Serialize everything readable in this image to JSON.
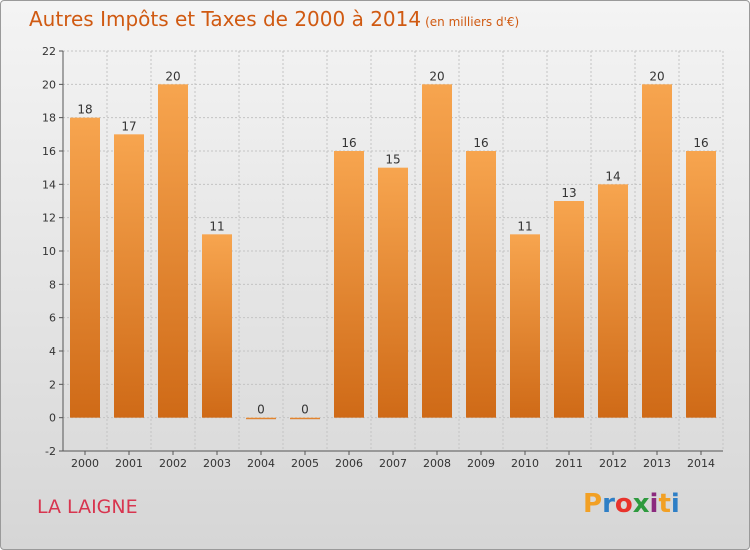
{
  "header": {
    "title": "Autres Impôts et Taxes de 2000 à 2014",
    "unit": "(en milliers d'€)"
  },
  "footer": {
    "place": "LA LAIGNE",
    "logo_letters": [
      "P",
      "r",
      "o",
      "x",
      "i",
      "t",
      "i"
    ],
    "logo_colors": [
      "#f2a024",
      "#2e7fc6",
      "#e8332c",
      "#2e9a3e",
      "#8b2a7e",
      "#f2a024",
      "#2e7fc6"
    ]
  },
  "colors": {
    "bar_light": "#f7a54f",
    "bar_dark": "#cf6a17",
    "title": "#d05a12",
    "place": "#d8354f"
  },
  "chart_data": {
    "type": "bar",
    "title": "Autres Impôts et Taxes de 2000 à 2014",
    "subtitle": "(en milliers d'€)",
    "categories": [
      "2000",
      "2001",
      "2002",
      "2003",
      "2004",
      "2005",
      "2006",
      "2007",
      "2008",
      "2009",
      "2010",
      "2011",
      "2012",
      "2013",
      "2014"
    ],
    "values": [
      18,
      17,
      20,
      11,
      0,
      0,
      16,
      15,
      20,
      16,
      11,
      13,
      14,
      20,
      16
    ],
    "value_labels": [
      "18",
      "17",
      "20",
      "11",
      "0",
      "0",
      "16",
      "15",
      "20",
      "16",
      "11",
      "13",
      "14",
      "20",
      "16"
    ],
    "ylim": [
      -2,
      22
    ],
    "yticks": [
      -2,
      0,
      2,
      4,
      6,
      8,
      10,
      12,
      14,
      16,
      18,
      20,
      22
    ],
    "ytick_labels": [
      "-2",
      "0",
      "2",
      "4",
      "6",
      "8",
      "10",
      "12",
      "14",
      "16",
      "18",
      "20",
      "22"
    ],
    "grid": true,
    "legend": "none"
  }
}
